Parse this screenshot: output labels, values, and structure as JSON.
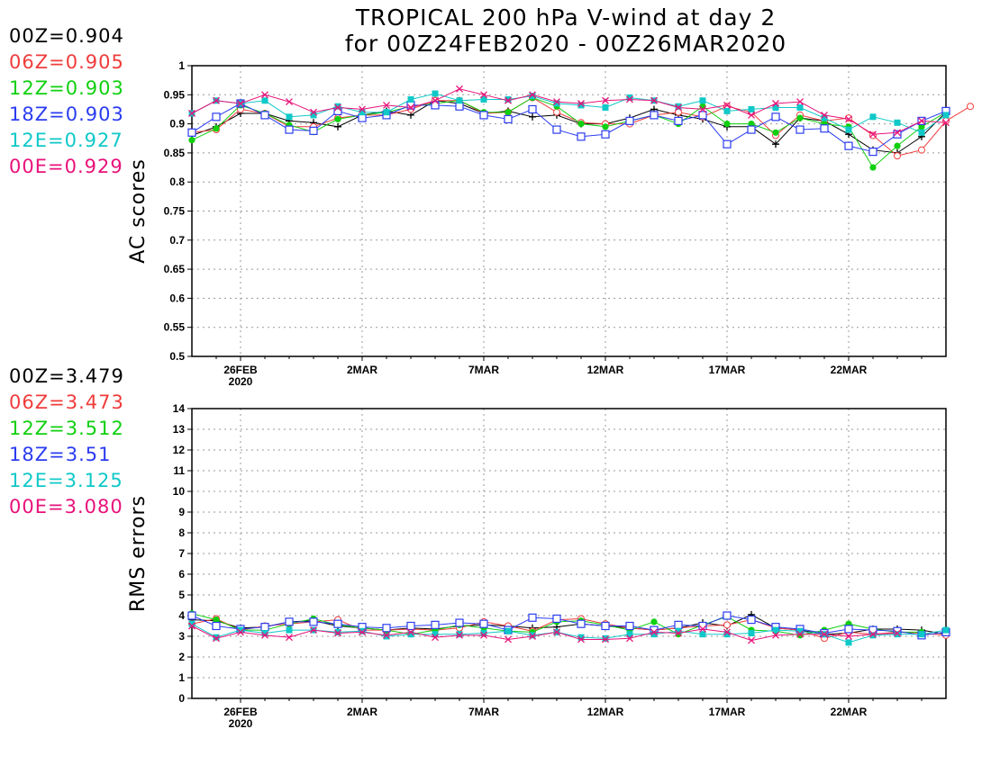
{
  "title": {
    "line1": "TROPICAL 200 hPa V-wind at day 2",
    "line2": "for 00Z24FEB2020 - 00Z26MAR2020"
  },
  "colors": {
    "00Z": "#000000",
    "06Z": "#f03c3c",
    "12Z": "#10d010",
    "18Z": "#2b3cf0",
    "12E": "#10c8c8",
    "00E": "#e8127a"
  },
  "ac_scores_legend": [
    {
      "label": "00Z=0.904",
      "series": "00Z"
    },
    {
      "label": "06Z=0.905",
      "series": "06Z"
    },
    {
      "label": "12Z=0.903",
      "series": "12Z"
    },
    {
      "label": "18Z=0.903",
      "series": "18Z"
    },
    {
      "label": "12E=0.927",
      "series": "12E"
    },
    {
      "label": "00E=0.929",
      "series": "00E"
    }
  ],
  "rms_legend": [
    {
      "label": "00Z=3.479",
      "series": "00Z"
    },
    {
      "label": "06Z=3.473",
      "series": "06Z"
    },
    {
      "label": "12Z=3.512",
      "series": "12Z"
    },
    {
      "label": "18Z=3.51",
      "series": "18Z"
    },
    {
      "label": "12E=3.125",
      "series": "12E"
    },
    {
      "label": "00E=3.080",
      "series": "00E"
    }
  ],
  "chart_data": [
    {
      "type": "line",
      "ylabel": "AC scores",
      "ylim": [
        0.5,
        1
      ],
      "yticks": [
        "0.5",
        "0.55",
        "0.6",
        "0.65",
        "0.7",
        "0.75",
        "0.8",
        "0.85",
        "0.9",
        "0.95",
        "1"
      ],
      "xticks": [
        {
          "day": 2,
          "label": "26FEB",
          "sub": "2020"
        },
        {
          "day": 7,
          "label": "2MAR"
        },
        {
          "day": 12,
          "label": "7MAR"
        },
        {
          "day": 17,
          "label": "12MAR"
        },
        {
          "day": 22,
          "label": "17MAR"
        },
        {
          "day": 27,
          "label": "22MAR"
        }
      ],
      "xlim": [
        0,
        31
      ],
      "grid": true,
      "series": [
        {
          "name": "00Z",
          "marker": "plus",
          "values": [
            0.88,
            0.895,
            0.918,
            0.918,
            0.905,
            0.902,
            0.895,
            0.915,
            0.922,
            0.915,
            0.94,
            0.935,
            0.918,
            0.922,
            0.912,
            0.915,
            0.9,
            0.9,
            0.91,
            0.925,
            0.915,
            0.908,
            0.895,
            0.895,
            0.865,
            0.91,
            0.905,
            0.882,
            0.855,
            0.85,
            0.878,
            0.92
          ]
        },
        {
          "name": "06Z",
          "marker": "circle",
          "values": [
            0.885,
            0.89,
            0.925,
            0.918,
            0.895,
            0.895,
            0.91,
            0.915,
            0.915,
            0.925,
            0.94,
            0.94,
            0.918,
            0.92,
            0.945,
            0.92,
            0.902,
            0.9,
            0.9,
            0.915,
            0.92,
            0.912,
            0.93,
            0.92,
            0.88,
            0.915,
            0.905,
            0.91,
            0.88,
            0.845,
            0.855,
            0.905,
            0.93
          ]
        },
        {
          "name": "12Z",
          "marker": "dot",
          "values": [
            0.872,
            0.892,
            0.932,
            0.918,
            0.898,
            0.886,
            0.908,
            0.915,
            0.92,
            0.93,
            0.935,
            0.94,
            0.92,
            0.92,
            0.945,
            0.93,
            0.9,
            0.895,
            0.905,
            0.915,
            0.9,
            0.93,
            0.9,
            0.9,
            0.885,
            0.91,
            0.9,
            0.895,
            0.825,
            0.862,
            0.895,
            0.92
          ]
        },
        {
          "name": "18Z",
          "marker": "square",
          "values": [
            0.885,
            0.912,
            0.935,
            0.915,
            0.89,
            0.888,
            0.922,
            0.91,
            0.915,
            0.932,
            0.932,
            0.93,
            0.915,
            0.908,
            0.925,
            0.89,
            0.878,
            0.882,
            0.905,
            0.915,
            0.905,
            0.915,
            0.865,
            0.89,
            0.912,
            0.89,
            0.892,
            0.862,
            0.852,
            0.882,
            0.905,
            0.922
          ]
        },
        {
          "name": "12E",
          "marker": "filled-square",
          "values": [
            0.918,
            0.94,
            0.935,
            0.94,
            0.912,
            0.915,
            0.93,
            0.92,
            0.92,
            0.942,
            0.952,
            0.94,
            0.942,
            0.942,
            0.948,
            0.935,
            0.932,
            0.928,
            0.945,
            0.94,
            0.93,
            0.94,
            0.922,
            0.925,
            0.928,
            0.928,
            0.91,
            0.89,
            0.912,
            0.902,
            0.885,
            0.915
          ]
        },
        {
          "name": "00E",
          "marker": "cross",
          "values": [
            0.918,
            0.94,
            0.935,
            0.95,
            0.938,
            0.92,
            0.928,
            0.925,
            0.932,
            0.928,
            0.94,
            0.96,
            0.95,
            0.94,
            0.95,
            0.938,
            0.935,
            0.94,
            0.942,
            0.94,
            0.928,
            0.925,
            0.932,
            0.915,
            0.935,
            0.938,
            0.915,
            0.908,
            0.882,
            0.885,
            0.905,
            0.902
          ]
        }
      ]
    },
    {
      "type": "line",
      "ylabel": "RMS errors",
      "ylim": [
        0,
        14
      ],
      "yticks": [
        "0",
        "1",
        "2",
        "3",
        "4",
        "5",
        "6",
        "7",
        "8",
        "9",
        "10",
        "11",
        "12",
        "13",
        "14"
      ],
      "xticks": [
        {
          "day": 2,
          "label": "26FEB",
          "sub": "2020"
        },
        {
          "day": 7,
          "label": "2MAR"
        },
        {
          "day": 12,
          "label": "7MAR"
        },
        {
          "day": 17,
          "label": "12MAR"
        },
        {
          "day": 22,
          "label": "17MAR"
        },
        {
          "day": 27,
          "label": "22MAR"
        }
      ],
      "xlim": [
        0,
        31
      ],
      "grid": true,
      "series": [
        {
          "name": "00Z",
          "marker": "plus",
          "values": [
            3.8,
            3.75,
            3.4,
            3.45,
            3.7,
            3.75,
            3.5,
            3.4,
            3.3,
            3.4,
            3.35,
            3.5,
            3.55,
            3.5,
            3.4,
            3.45,
            3.6,
            3.5,
            3.4,
            3.3,
            3.4,
            3.65,
            3.5,
            4.05,
            3.4,
            3.3,
            3.1,
            3.15,
            3.35,
            3.35,
            3.3,
            3.1
          ]
        },
        {
          "name": "06Z",
          "marker": "circle",
          "values": [
            3.6,
            3.85,
            3.3,
            3.5,
            3.6,
            3.7,
            3.8,
            3.3,
            3.3,
            3.35,
            3.3,
            3.4,
            3.7,
            3.5,
            3.25,
            3.8,
            3.85,
            3.6,
            3.4,
            3.3,
            3.4,
            3.5,
            3.55,
            3.8,
            3.4,
            3.3,
            2.9,
            3.2,
            3.1,
            3.2,
            3.15,
            3.05
          ]
        },
        {
          "name": "12Z",
          "marker": "dot",
          "values": [
            4.1,
            3.8,
            3.3,
            3.3,
            3.6,
            3.85,
            3.55,
            3.4,
            3.3,
            3.1,
            3.3,
            3.55,
            3.4,
            3.25,
            3.2,
            3.7,
            3.75,
            3.55,
            3.3,
            3.7,
            3.1,
            3.55,
            3.95,
            3.3,
            3.25,
            3.05,
            3.3,
            3.6,
            3.35,
            3.2,
            3.2
          ]
        },
        {
          "name": "18Z",
          "marker": "square",
          "values": [
            4.0,
            3.5,
            3.35,
            3.45,
            3.7,
            3.7,
            3.6,
            3.45,
            3.4,
            3.5,
            3.55,
            3.65,
            3.6,
            3.3,
            3.9,
            3.85,
            3.6,
            3.5,
            3.5,
            3.3,
            3.55,
            3.5,
            4.0,
            3.8,
            3.45,
            3.35,
            3.15,
            3.35,
            3.3,
            3.25,
            3.05,
            3.2
          ]
        },
        {
          "name": "12E",
          "marker": "filled-square",
          "values": [
            3.6,
            2.95,
            3.3,
            3.15,
            3.3,
            3.3,
            3.2,
            3.25,
            3.0,
            3.1,
            3.1,
            3.1,
            3.15,
            3.25,
            3.05,
            3.2,
            2.95,
            2.9,
            3.1,
            3.1,
            3.25,
            3.1,
            3.1,
            3.15,
            3.3,
            3.25,
            3.1,
            2.7,
            3.05,
            3.1,
            3.1,
            3.3
          ]
        },
        {
          "name": "00E",
          "marker": "cross",
          "values": [
            3.5,
            2.9,
            3.2,
            3.05,
            2.95,
            3.3,
            3.15,
            3.2,
            3.05,
            3.2,
            2.95,
            3.05,
            3.05,
            2.85,
            3.0,
            3.2,
            2.85,
            2.85,
            2.9,
            3.2,
            3.15,
            3.35,
            3.2,
            2.8,
            3.05,
            3.1,
            3.1,
            3.0,
            3.1,
            3.15
          ]
        }
      ]
    }
  ]
}
